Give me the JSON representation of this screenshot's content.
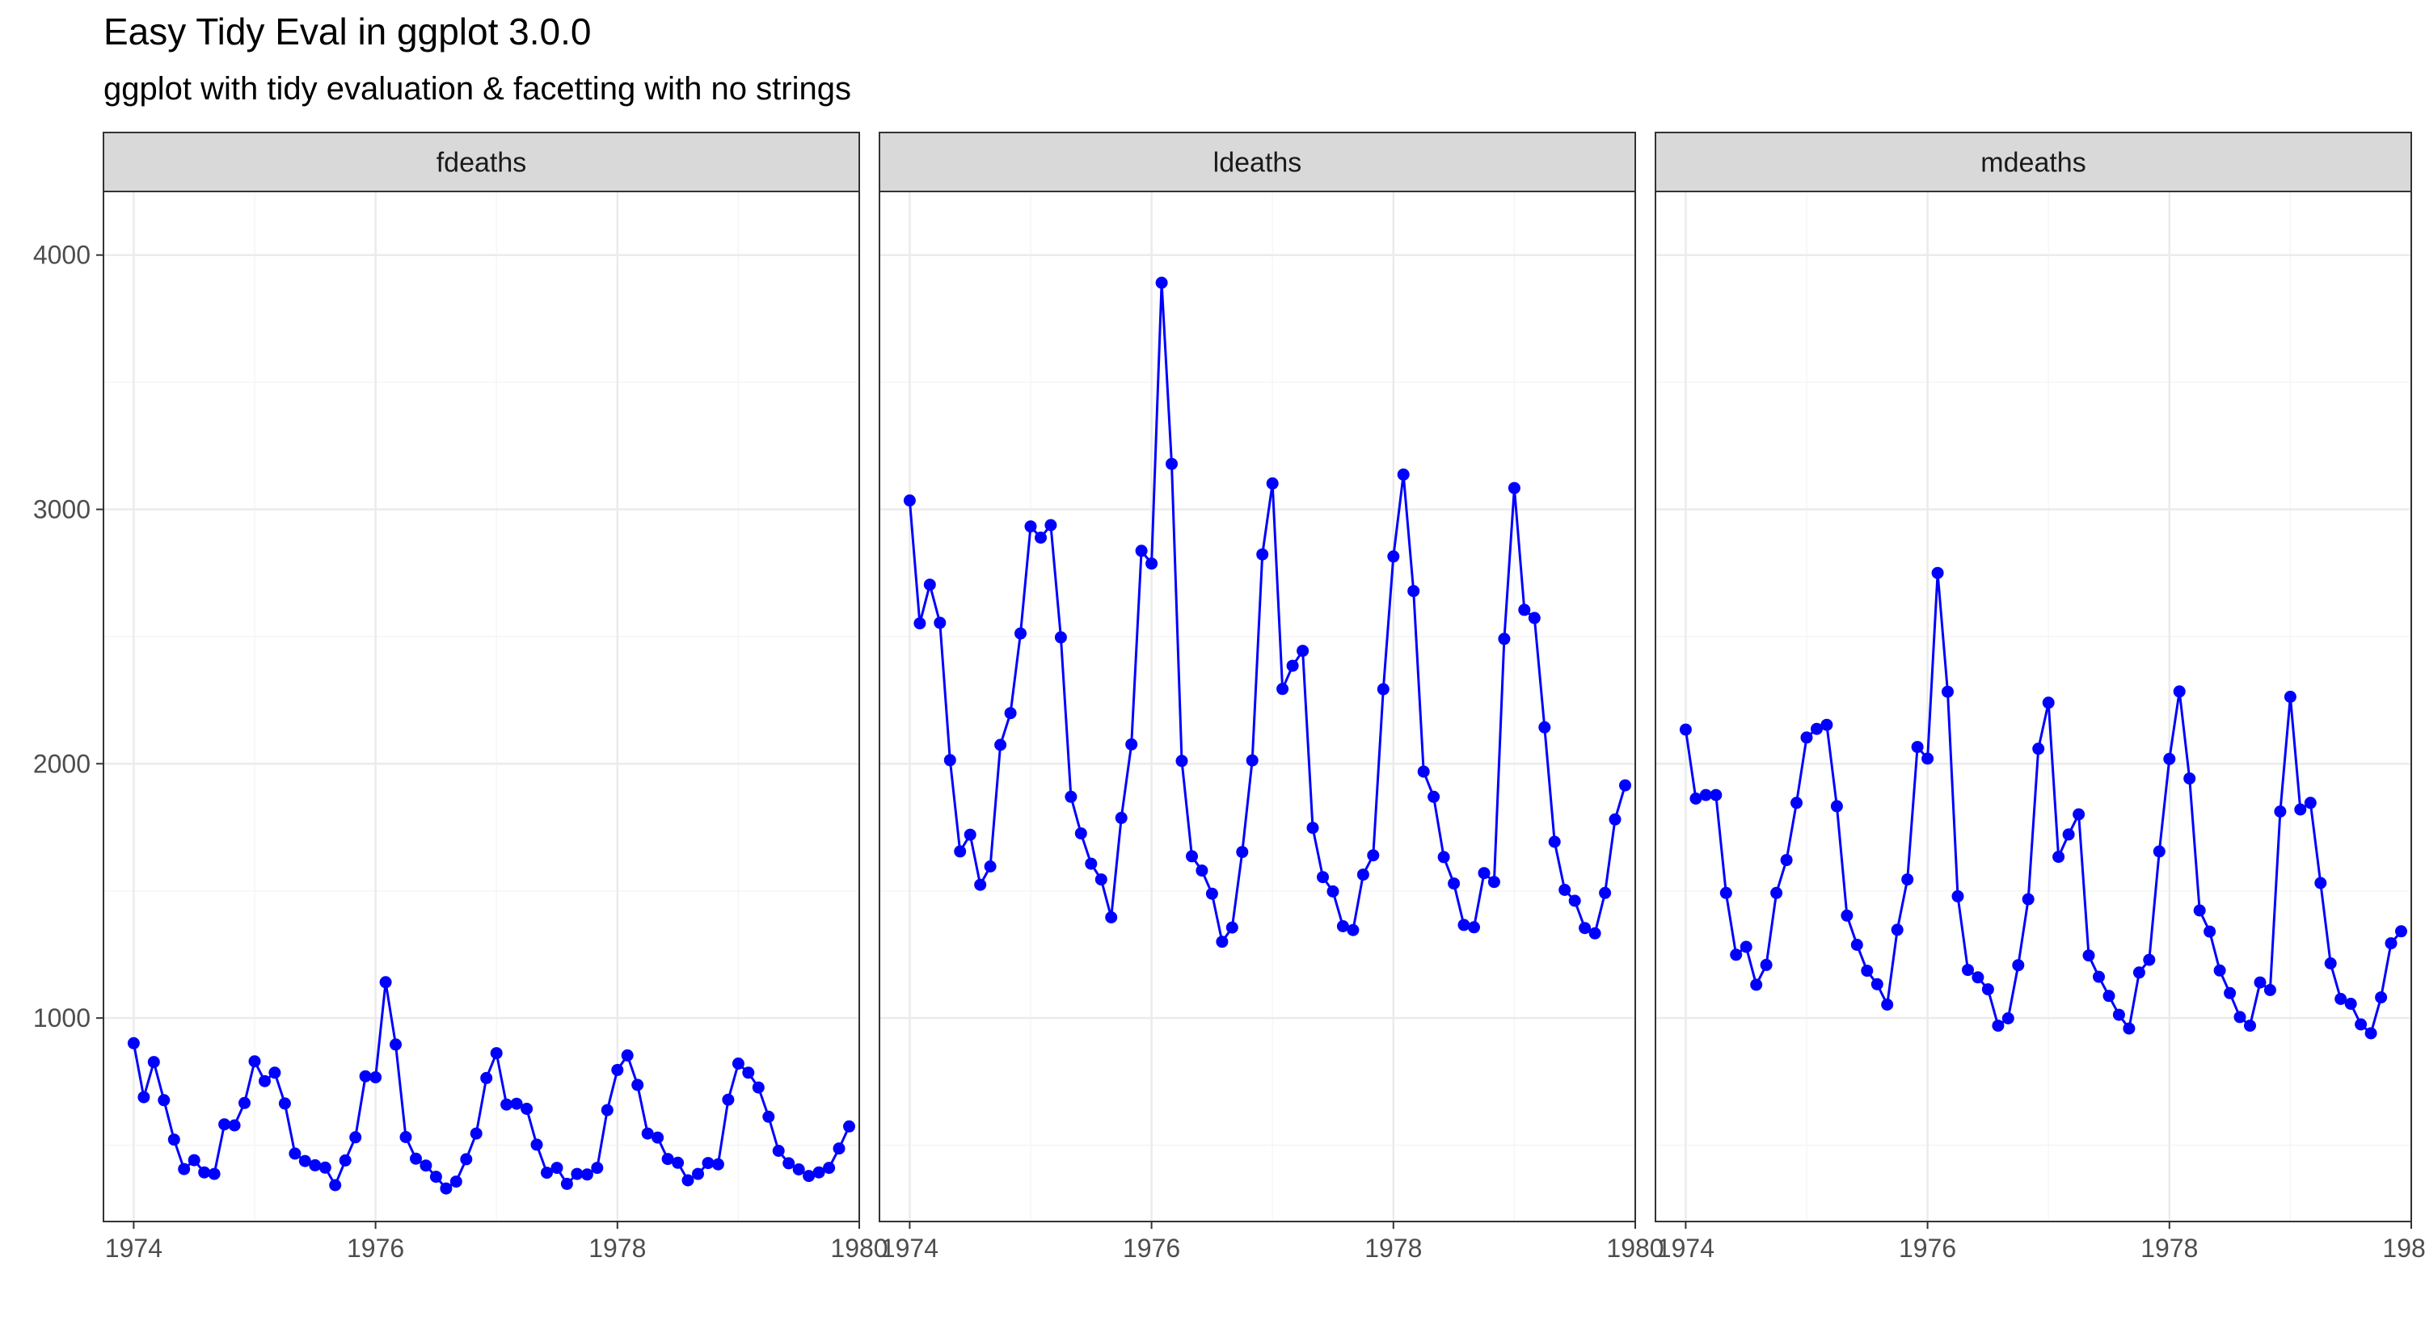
{
  "title": "Easy Tidy Eval in ggplot 3.0.0",
  "subtitle": "ggplot with tidy evaluation & facetting with no strings",
  "colors": {
    "series": "#0000FF",
    "strip_bg": "#D9D9D9",
    "grid_major": "#EBEBEB",
    "grid_minor": "#F5F5F5",
    "panel_border": "#333333",
    "tick_label": "#4D4D4D"
  },
  "chart_data": {
    "type": "line",
    "facet": "wrap",
    "markers": true,
    "x_start": 1974,
    "x_step": 0.08333,
    "xlim": [
      1973.75,
      1980.0
    ],
    "ylim": [
      200,
      4250
    ],
    "x_ticks": [
      1974,
      1976,
      1978,
      1980
    ],
    "y_ticks": [
      1000,
      2000,
      3000,
      4000
    ],
    "x_tick_labels": [
      "1974",
      "1976",
      "1978",
      "1980"
    ],
    "y_tick_labels": [
      "1000",
      "2000",
      "3000",
      "4000"
    ],
    "grid": true,
    "panels": [
      {
        "name": "fdeaths",
        "values": [
          901,
          689,
          827,
          677,
          522,
          406,
          441,
          393,
          387,
          582,
          578,
          666,
          830,
          752,
          785,
          664,
          467,
          438,
          421,
          412,
          343,
          440,
          531,
          771,
          767,
          1141,
          896,
          532,
          447,
          420,
          376,
          330,
          357,
          445,
          546,
          764,
          862,
          660,
          663,
          643,
          502,
          392,
          411,
          348,
          387,
          385,
          411,
          638,
          796,
          853,
          737,
          546,
          530,
          446,
          431,
          362,
          387,
          430,
          425,
          679,
          821,
          785,
          727,
          612,
          478,
          429,
          405,
          379,
          393,
          411,
          487,
          574
        ]
      },
      {
        "name": "ldeaths",
        "values": [
          3035,
          2552,
          2704,
          2554,
          2014,
          1655,
          1721,
          1524,
          1596,
          2074,
          2199,
          2512,
          2933,
          2889,
          2938,
          2497,
          1870,
          1726,
          1607,
          1545,
          1396,
          1787,
          2076,
          2837,
          2787,
          3891,
          3179,
          2011,
          1636,
          1580,
          1489,
          1300,
          1356,
          1653,
          2013,
          2823,
          3102,
          2294,
          2385,
          2444,
          1748,
          1554,
          1498,
          1361,
          1346,
          1564,
          1640,
          2293,
          2815,
          3137,
          2679,
          1969,
          1870,
          1633,
          1529,
          1366,
          1357,
          1570,
          1535,
          2491,
          3084,
          2605,
          2573,
          2143,
          1693,
          1504,
          1461,
          1354,
          1333,
          1492,
          1781,
          1915
        ]
      },
      {
        "name": "mdeaths",
        "values": [
          2134,
          1863,
          1877,
          1877,
          1492,
          1249,
          1280,
          1131,
          1209,
          1492,
          1621,
          1846,
          2103,
          2137,
          2153,
          1833,
          1403,
          1288,
          1186,
          1133,
          1053,
          1347,
          1545,
          2066,
          2020,
          2750,
          2283,
          1479,
          1189,
          1160,
          1113,
          970,
          999,
          1208,
          1467,
          2059,
          2240,
          1634,
          1722,
          1801,
          1246,
          1162,
          1087,
          1013,
          959,
          1179,
          1229,
          1655,
          2019,
          2284,
          1942,
          1423,
          1340,
          1187,
          1098,
          1004,
          970,
          1140,
          1110,
          1812,
          2263,
          1820,
          1846,
          1531,
          1215,
          1075,
          1056,
          975,
          940,
          1081,
          1294,
          1341
        ]
      }
    ]
  }
}
